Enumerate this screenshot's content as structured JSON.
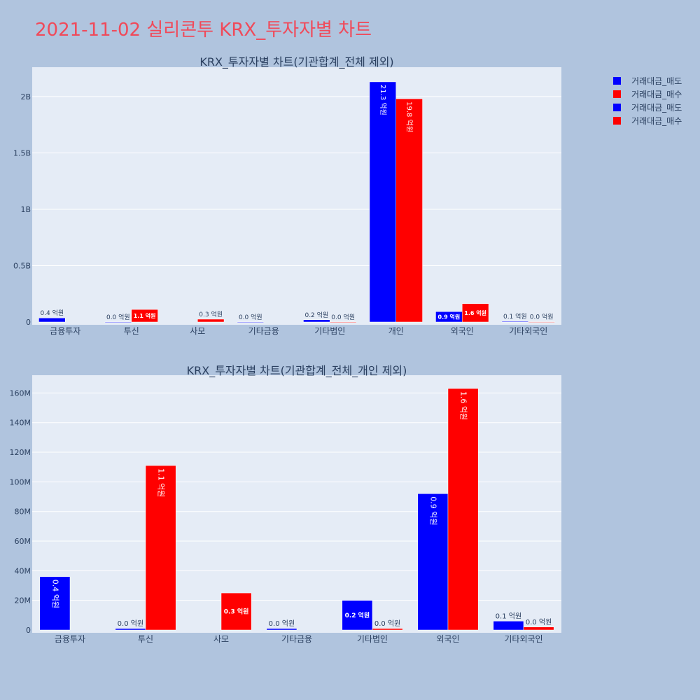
{
  "title": "2021-11-02 실리콘투 KRX_투자자별 차트",
  "colors": {
    "page_bg": "#b0c4de",
    "plot_bg": "#e5ecf6",
    "sell": "#0000ff",
    "buy": "#ff0000",
    "title": "#f04a5a",
    "axis_text": "#2a3f5f"
  },
  "legend": {
    "position": "top-right",
    "items": [
      {
        "label": "거래대금_매도",
        "color": "#0000ff"
      },
      {
        "label": "거래대금_매수",
        "color": "#ff0000"
      },
      {
        "label": "거래대금_매도",
        "color": "#0000ff"
      },
      {
        "label": "거래대금_매수",
        "color": "#ff0000"
      }
    ]
  },
  "chart_data": [
    {
      "type": "bar",
      "title": "KRX_투자자별 차트(기관합계_전체 제외)",
      "categories": [
        "금융투자",
        "투신",
        "사모",
        "기타금융",
        "기타법인",
        "개인",
        "외국인",
        "기타외국인"
      ],
      "ylim": [
        0,
        2260000000
      ],
      "yticks": [
        0,
        500000000,
        1000000000,
        1500000000,
        2000000000
      ],
      "ytick_labels": [
        "0",
        "0.5B",
        "1B",
        "1.5B",
        "2B"
      ],
      "grid": true,
      "series": [
        {
          "name": "거래대금_매도",
          "values": [
            36000000,
            1000000,
            0,
            1000000,
            20000000,
            2130000000,
            92000000,
            6000000
          ],
          "labels": [
            "0.4 억원",
            "0.0 억원",
            "",
            "0.0 억원",
            "0.2 억원",
            "21.3 억원",
            "0.9 억원",
            "0.1 억원"
          ]
        },
        {
          "name": "거래대금_매수",
          "values": [
            0,
            111000000,
            25000000,
            0,
            1000000,
            1980000000,
            163000000,
            2000000
          ],
          "labels": [
            "",
            "1.1 억원",
            "0.3 억원",
            "",
            "0.0 억원",
            "19.8 억원",
            "1.6 억원",
            "0.0 억원"
          ]
        }
      ]
    },
    {
      "type": "bar",
      "title": "KRX_투자자별 차트(기관합계_전체_개인 제외)",
      "categories": [
        "금융투자",
        "투신",
        "사모",
        "기타금융",
        "기타법인",
        "외국인",
        "기타외국인"
      ],
      "ylim": [
        0,
        172000000
      ],
      "yticks": [
        0,
        20000000,
        40000000,
        60000000,
        80000000,
        100000000,
        120000000,
        140000000,
        160000000
      ],
      "ytick_labels": [
        "0",
        "20M",
        "40M",
        "60M",
        "80M",
        "100M",
        "120M",
        "140M",
        "160M"
      ],
      "grid": true,
      "series": [
        {
          "name": "거래대금_매도",
          "values": [
            36000000,
            1000000,
            0,
            1000000,
            20000000,
            92000000,
            6000000
          ],
          "labels": [
            "0.4 억원",
            "0.0 억원",
            "",
            "0.0 억원",
            "0.2 억원",
            "0.9 억원",
            "0.1 억원"
          ]
        },
        {
          "name": "거래대금_매수",
          "values": [
            0,
            111000000,
            25000000,
            0,
            1000000,
            163000000,
            2000000
          ],
          "labels": [
            "",
            "1.1 억원",
            "0.3 억원",
            "",
            "0.0 억원",
            "1.6 억원",
            "0.0 억원"
          ]
        }
      ]
    }
  ]
}
